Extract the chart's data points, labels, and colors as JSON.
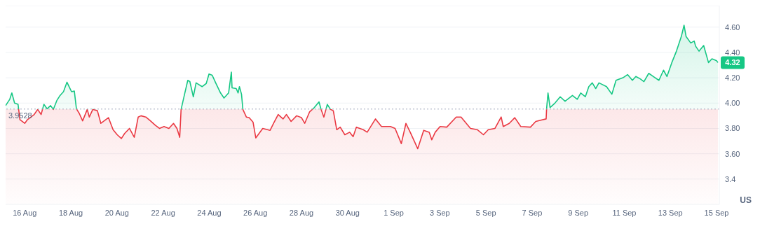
{
  "chart_data": {
    "type": "area",
    "ylabel": "US",
    "grid": "y",
    "marker": "none",
    "line_style": "solid",
    "xlim": [
      "--08-15T04:05",
      "--09-15T02:53"
    ],
    "ylim": [
      3.2,
      4.77
    ],
    "xticks": [
      {
        "value": "--08-16",
        "label": "16 Aug"
      },
      {
        "value": "--08-18",
        "label": "18 Aug"
      },
      {
        "value": "--08-20",
        "label": "20 Aug"
      },
      {
        "value": "--08-22",
        "label": "22 Aug"
      },
      {
        "value": "--08-24",
        "label": "24 Aug"
      },
      {
        "value": "--08-26",
        "label": "26 Aug"
      },
      {
        "value": "--08-28",
        "label": "28 Aug"
      },
      {
        "value": "--08-30",
        "label": "30 Aug"
      },
      {
        "value": "--09-01",
        "label": "1 Sep"
      },
      {
        "value": "--09-03",
        "label": "3 Sep"
      },
      {
        "value": "--09-05",
        "label": "5 Sep"
      },
      {
        "value": "--09-07",
        "label": "7 Sep"
      },
      {
        "value": "--09-09",
        "label": "9 Sep"
      },
      {
        "value": "--09-11",
        "label": "11 Sep"
      },
      {
        "value": "--09-13",
        "label": "13 Sep"
      },
      {
        "value": "--09-15",
        "label": "15 Sep"
      }
    ],
    "yticks": [
      3.4,
      {
        "value": 3.6,
        "label": "3.60"
      },
      {
        "value": 3.8,
        "label": "3.80"
      },
      {
        "value": 4.0,
        "label": "4.00"
      },
      {
        "value": 4.2,
        "label": "4.20"
      },
      {
        "value": 4.4,
        "label": "4.40"
      },
      {
        "value": 4.6,
        "label": "4.60"
      }
    ],
    "ref_lines": [
      {
        "axis": "y",
        "value": 3.9528,
        "label": "3.9528",
        "color": "#a1a7bb",
        "line_style": "dotted"
      }
    ],
    "annotations": [
      {
        "text": "4.32",
        "x": "--09-15T01:26",
        "y": 4.32
      }
    ],
    "series": [
      {
        "color": "#16c784",
        "x": [
          "--08-15T04:05",
          "--08-15T08:24",
          "--08-15T10:34",
          "--08-15T13:26",
          "--08-15T17:02",
          "--08-15T18:58",
          "--08-16T00:00",
          "--08-16T02:53",
          "--08-16T09:50",
          "--08-16T13:26",
          "--08-16T17:02",
          "--08-16T19:55",
          "--08-16T23:17",
          "--08-17T02:53",
          "--08-17T05:46",
          "--08-17T09:22",
          "--08-17T12:43",
          "--08-17T16:19",
          "--08-17T19:55",
          "--08-17T22:48",
          "--08-18T00:43",
          "--08-18T03:36",
          "--08-18T05:46",
          "--08-18T08:38",
          "--08-18T12:14",
          "--08-18T17:02",
          "--08-18T19:12",
          "--08-18T22:48",
          "--08-19T03:36",
          "--08-19T07:12",
          "--08-19T15:07",
          "--08-19T19:55",
          "--08-20T00:14",
          "--08-20T04:34",
          "--08-20T07:55",
          "--08-20T12:58",
          "--08-20T18:00",
          "--08-20T22:05",
          "--08-21T00:58",
          "--08-21T06:00",
          "--08-21T10:48",
          "--08-21T15:50",
          "--08-21T20:10",
          "--08-22T00:58",
          "--08-22T06:00",
          "--08-22T10:48",
          "--08-22T14:24",
          "--08-22T17:17",
          "--08-22T18:43",
          "--08-22T22:19",
          "--08-23T01:41",
          "--08-23T03:50",
          "--08-23T07:26",
          "--08-23T10:19",
          "--08-23T16:34",
          "--08-23T20:53",
          "--08-23T23:46",
          "--08-24T03:07",
          "--08-24T06:43",
          "--08-24T11:46",
          "--08-24T15:22",
          "--08-24T20:10",
          "--08-24T23:02",
          "--08-24T23:46",
          "--08-25T04:05",
          "--08-25T06:00",
          "--08-25T07:26",
          "--08-25T09:36",
          "--08-25T11:02",
          "--08-25T14:38",
          "--08-25T17:31",
          "--08-25T21:36",
          "--08-26T00:29",
          "--08-26T07:41",
          "--08-26T15:22",
          "--08-26T18:58",
          "--08-26T23:46",
          "--08-27T04:48",
          "--08-27T08:24",
          "--08-27T13:12",
          "--08-27T18:58",
          "--08-28T00:00",
          "--08-28T03:22",
          "--08-28T08:24",
          "--08-28T13:26",
          "--08-28T18:14",
          "--08-28T20:24",
          "--08-28T23:17",
          "--08-29T02:53",
          "--08-29T06:14",
          "--08-29T09:07",
          "--08-29T12:43",
          "--08-29T16:19",
          "--08-29T21:07",
          "--08-30T02:10",
          "--08-30T05:46",
          "--08-30T09:07",
          "--08-30T16:19",
          "--08-30T20:24",
          "--08-31T05:02",
          "--08-31T11:17",
          "--08-31T20:38",
          "--09-01T01:26",
          "--09-01T07:55",
          "--09-01T12:43",
          "--09-01T17:46",
          "--09-02T00:58",
          "--09-02T07:12",
          "--09-02T12:58",
          "--09-02T15:36",
          "--09-02T19:12",
          "--09-03T00:14",
          "--09-03T07:12",
          "--09-03T17:02",
          "--09-03T22:05",
          "--09-04T07:55",
          "--09-04T15:07",
          "--09-04T21:22",
          "--09-05T02:24",
          "--09-05T09:22",
          "--09-05T15:50",
          "--09-05T18:00",
          "--09-06T00:14",
          "--09-06T06:00",
          "--09-06T12:14",
          "--09-06T22:19",
          "--09-07T03:50",
          "--09-07T08:53",
          "--09-07T14:38",
          "--09-07T15:07",
          "--09-07T16:34",
          "--09-07T18:43",
          "--09-07T23:46",
          "--09-08T05:17",
          "--09-08T10:19",
          "--09-08T18:00",
          "--09-08T23:02",
          "--09-09T02:38",
          "--09-09T07:26",
          "--09-09T11:02",
          "--09-09T14:38",
          "--09-09T18:14",
          "--09-09T21:36",
          "--09-10T05:31",
          "--09-10T11:02",
          "--09-10T15:22",
          "--09-10T22:34",
          "--09-11T03:22",
          "--09-11T08:24",
          "--09-11T12:00",
          "--09-11T16:48",
          "--09-11T20:24",
          "--09-12T01:26",
          "--09-12T06:14",
          "--09-12T12:00",
          "--09-12T16:48",
          "--09-12T20:24",
          "--09-13T01:26",
          "--09-13T06:14",
          "--09-13T11:17",
          "--09-13T14:10",
          "--09-13T16:19",
          "--09-13T21:07",
          "--09-14T00:43",
          "--09-14T02:10",
          "--09-14T05:46",
          "--09-14T10:34",
          "--09-14T15:36",
          "--09-14T19:12",
          "--09-15T00:00",
          "--09-15T01:26"
        ],
        "values": [
          3.98,
          4.03,
          4.08,
          4.0,
          3.99,
          3.87,
          3.84,
          3.87,
          3.91,
          3.95,
          3.91,
          3.99,
          3.955,
          3.98,
          3.95,
          4.02,
          4.06,
          4.09,
          4.165,
          4.12,
          4.09,
          4.095,
          3.955,
          3.92,
          3.86,
          3.95,
          3.89,
          3.95,
          3.94,
          3.84,
          3.885,
          3.79,
          3.75,
          3.72,
          3.76,
          3.8,
          3.73,
          3.89,
          3.9,
          3.89,
          3.86,
          3.825,
          3.8,
          3.815,
          3.8,
          3.84,
          3.8,
          3.73,
          3.95,
          4.07,
          4.18,
          4.17,
          4.05,
          4.16,
          4.13,
          4.155,
          4.23,
          4.22,
          4.16,
          4.08,
          4.04,
          4.08,
          4.245,
          4.12,
          4.115,
          4.08,
          4.13,
          4.07,
          3.95,
          3.89,
          3.885,
          3.85,
          3.725,
          3.8,
          3.785,
          3.84,
          3.91,
          3.875,
          3.91,
          3.855,
          3.9,
          3.885,
          3.84,
          3.93,
          3.965,
          4.01,
          3.95,
          3.89,
          3.99,
          3.95,
          3.94,
          3.79,
          3.81,
          3.75,
          3.77,
          3.735,
          3.81,
          3.79,
          3.77,
          3.875,
          3.815,
          3.815,
          3.8,
          3.68,
          3.84,
          3.76,
          3.64,
          3.785,
          3.77,
          3.71,
          3.77,
          3.815,
          3.81,
          3.89,
          3.89,
          3.8,
          3.79,
          3.75,
          3.79,
          3.8,
          3.89,
          3.815,
          3.84,
          3.885,
          3.815,
          3.81,
          3.855,
          3.865,
          3.875,
          3.955,
          4.08,
          3.965,
          4.0,
          4.05,
          4.015,
          4.06,
          4.03,
          4.08,
          4.05,
          4.13,
          4.16,
          4.115,
          4.16,
          4.13,
          4.07,
          4.18,
          4.2,
          4.225,
          4.18,
          4.21,
          4.19,
          4.17,
          4.235,
          4.21,
          4.18,
          4.26,
          4.21,
          4.32,
          4.41,
          4.525,
          4.615,
          4.525,
          4.475,
          4.49,
          4.45,
          4.41,
          4.455,
          4.32,
          4.35,
          4.335,
          4.32
        ]
      }
    ]
  }
}
